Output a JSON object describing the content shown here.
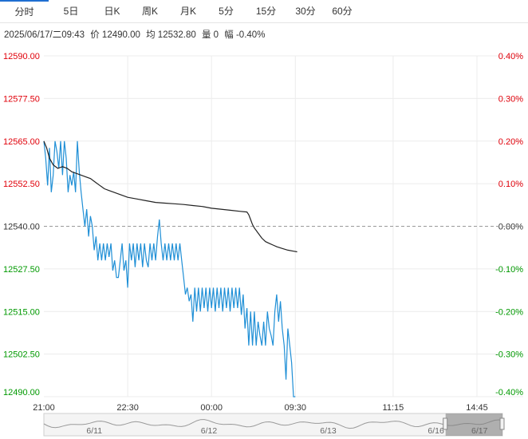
{
  "tabs": [
    {
      "label": "分时",
      "active": true
    },
    {
      "label": "5日",
      "active": false
    },
    {
      "label": "日K",
      "active": false
    },
    {
      "label": "周K",
      "active": false
    },
    {
      "label": "月K",
      "active": false
    },
    {
      "label": "5分",
      "active": false
    },
    {
      "label": "15分",
      "active": false
    },
    {
      "label": "30分",
      "active": false
    },
    {
      "label": "60分",
      "active": false
    }
  ],
  "info": {
    "datetime": "2025/06/17/二09:43",
    "price": "价 12490.00",
    "avg": "均 12532.80",
    "volume": "量 0",
    "change": "幅 -0.40%"
  },
  "colors": {
    "up": "#e0000a",
    "down": "#009900",
    "neutral": "#333333",
    "price_line": "#1f8fd6",
    "avg_line": "#222222",
    "grid": "#ececec",
    "active_tab": "#1f6fd1"
  },
  "chart_data": {
    "type": "line",
    "base_price": 12540.0,
    "ylim": [
      12490.0,
      12590.0
    ],
    "y_ticks_left": [
      "12590.00",
      "12577.50",
      "12565.00",
      "12552.50",
      "12540.00",
      "12527.50",
      "12515.00",
      "12502.50",
      "12490.00"
    ],
    "y_ticks_right": [
      "0.40%",
      "0.30%",
      "0.20%",
      "0.10%",
      "0.00%",
      "-0.10%",
      "-0.20%",
      "-0.30%",
      "-0.40%"
    ],
    "x_ticks": [
      "21:00",
      "22:30",
      "00:00",
      "09:30",
      "11:15",
      "14:45"
    ],
    "x_tick_minutes": [
      0,
      90,
      180,
      270,
      375,
      465
    ],
    "x_range_minutes": [
      0,
      465
    ],
    "series": [
      {
        "key": "price",
        "x": [
          0,
          2,
          4,
          6,
          8,
          10,
          12,
          14,
          16,
          18,
          20,
          22,
          24,
          26,
          28,
          30,
          32,
          34,
          36,
          38,
          40,
          42,
          44,
          46,
          48,
          50,
          52,
          54,
          56,
          58,
          60,
          62,
          64,
          66,
          68,
          70,
          72,
          74,
          76,
          78,
          80,
          82,
          84,
          86,
          88,
          90,
          92,
          94,
          96,
          98,
          100,
          102,
          104,
          106,
          108,
          110,
          112,
          114,
          116,
          118,
          120,
          122,
          124,
          126,
          128,
          130,
          132,
          134,
          136,
          138,
          140,
          142,
          144,
          146,
          148,
          150,
          152,
          154,
          156,
          158,
          160,
          162,
          164,
          166,
          168,
          170,
          172,
          174,
          176,
          178,
          180,
          182,
          184,
          186,
          188,
          190,
          192,
          194,
          196,
          198,
          200,
          202,
          204,
          206,
          208,
          210,
          212,
          214,
          216,
          218,
          220,
          222,
          224,
          226,
          228,
          230,
          232,
          234,
          236,
          238,
          240,
          242,
          244,
          246,
          248,
          250,
          252,
          254,
          256,
          258,
          260,
          262,
          264,
          266,
          268,
          270
        ],
        "values": [
          12565,
          12560,
          12552,
          12563,
          12550,
          12555,
          12565,
          12562,
          12557,
          12565,
          12555,
          12565,
          12560,
          12550,
          12555,
          12552,
          12556,
          12550,
          12565,
          12556,
          12550,
          12545,
          12540,
          12545,
          12537,
          12543,
          12540,
          12533,
          12537,
          12530,
          12535,
          12530,
          12535,
          12530,
          12535,
          12531,
          12535,
          12527,
          12530,
          12525,
          12525,
          12530,
          12535,
          12527,
          12530,
          12522,
          12535,
          12530,
          12535,
          12528,
          12535,
          12530,
          12535,
          12528,
          12535,
          12530,
          12528,
          12535,
          12530,
          12535,
          12530,
          12537,
          12542,
          12535,
          12530,
          12535,
          12530,
          12535,
          12530,
          12535,
          12530,
          12535,
          12530,
          12535,
          12530,
          12525,
          12520,
          12522,
          12518,
          12520,
          12512,
          12522,
          12515,
          12522,
          12515,
          12522,
          12516,
          12522,
          12515,
          12522,
          12516,
          12522,
          12515,
          12522,
          12516,
          12522,
          12515,
          12522,
          12516,
          12522,
          12515,
          12522,
          12516,
          12522,
          12516,
          12522,
          12514,
          12520,
          12510,
          12516,
          12505,
          12515,
          12505,
          12515,
          12505,
          12512,
          12508,
          12505,
          12512,
          12505,
          12515,
          12510,
          12508,
          12505,
          12515,
          12520,
          12512,
          12518,
          12510,
          12505,
          12495,
          12510,
          12505,
          12500,
          12490,
          12490
        ]
      },
      {
        "key": "average",
        "x": [
          0,
          3,
          6,
          10,
          15,
          20,
          25,
          30,
          35,
          40,
          45,
          50,
          55,
          60,
          65,
          70,
          75,
          80,
          85,
          90,
          100,
          110,
          120,
          130,
          140,
          150,
          160,
          170,
          180,
          190,
          200,
          210,
          218,
          220,
          222,
          224,
          226,
          230,
          234,
          238,
          242,
          246,
          250,
          256,
          262,
          268,
          272
        ],
        "values": [
          12565,
          12563,
          12560,
          12558,
          12557,
          12557.5,
          12557,
          12556,
          12555.5,
          12555,
          12554.5,
          12554,
          12553,
          12552,
          12551,
          12550.5,
          12550,
          12549.5,
          12549,
          12548.5,
          12548,
          12547.5,
          12547,
          12546.8,
          12546.6,
          12546.4,
          12546.1,
          12545.8,
          12545.3,
          12545,
          12544.7,
          12544.4,
          12544.2,
          12543.4,
          12542,
          12540.5,
          12539.5,
          12538,
          12536.5,
          12535.5,
          12535,
          12534.5,
          12534,
          12533.5,
          12533,
          12532.7,
          12532.5
        ]
      }
    ],
    "navigator": {
      "dates": [
        "6/11",
        "6/12",
        "6/13",
        "6/16",
        "6/17"
      ],
      "date_positions": [
        0.11,
        0.36,
        0.62,
        0.855,
        0.95
      ],
      "selection": [
        0.876,
        1.0
      ]
    }
  }
}
